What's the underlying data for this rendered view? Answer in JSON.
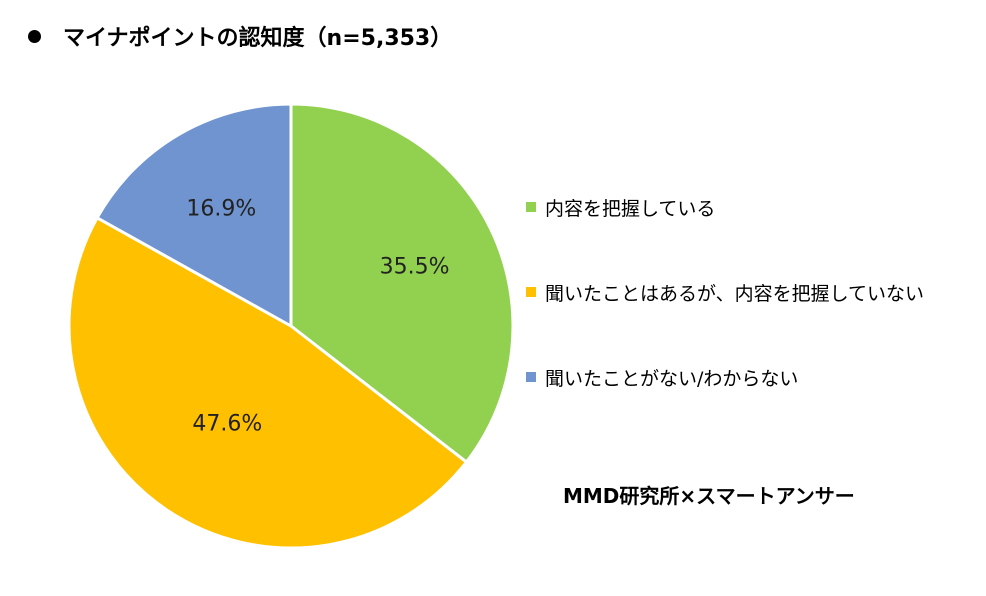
{
  "chart_data": {
    "type": "pie",
    "title": "マイナポイントの認知度（n=5,353）",
    "categories": [
      "内容を把握している",
      "聞いたことはあるが、内容を把握していない",
      "聞いたことがない/わからない"
    ],
    "values": [
      35.5,
      47.6,
      16.9
    ],
    "value_labels": [
      "35.5%",
      "47.6%",
      "16.9%"
    ],
    "colors": [
      "#92d050",
      "#ffc000",
      "#6f94cf"
    ],
    "legend_position": "right",
    "source": "MMD研究所×スマートアンサー"
  }
}
